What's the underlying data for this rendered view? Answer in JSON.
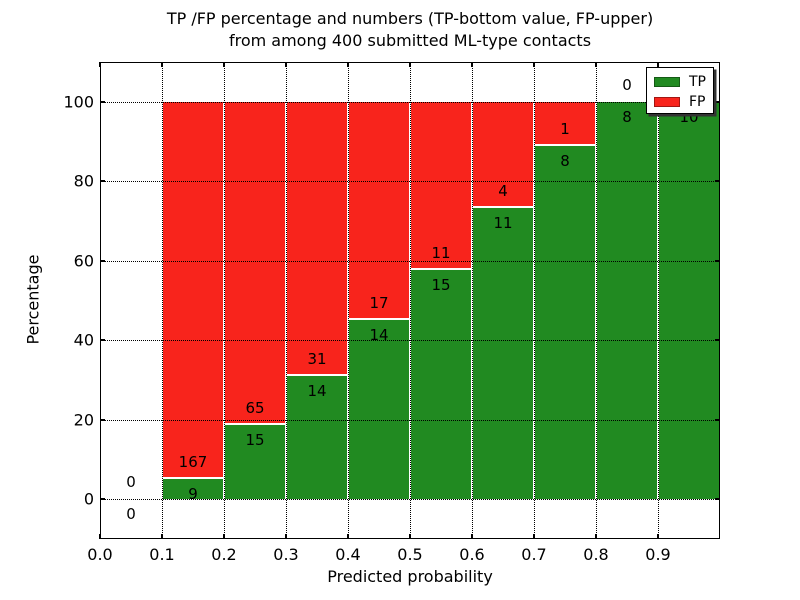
{
  "chart_data": {
    "type": "bar",
    "stacked": true,
    "percent_stacked": true,
    "title_line1": "TP /FP percentage and numbers (TP-bottom value, FP-upper)",
    "title_line2": "from among 400 submitted ML-type contacts",
    "xlabel": "Predicted probability",
    "ylabel": "Percentage",
    "xlim": [
      0.0,
      1.0
    ],
    "ylim": [
      -10,
      110
    ],
    "grid": "dotted",
    "x_ticks": [
      {
        "value": 0.0,
        "label": "0.0"
      },
      {
        "value": 0.1,
        "label": "0.1"
      },
      {
        "value": 0.2,
        "label": "0.2"
      },
      {
        "value": 0.3,
        "label": "0.3"
      },
      {
        "value": 0.4,
        "label": "0.4"
      },
      {
        "value": 0.5,
        "label": "0.5"
      },
      {
        "value": 0.6,
        "label": "0.6"
      },
      {
        "value": 0.7,
        "label": "0.7"
      },
      {
        "value": 0.8,
        "label": "0.8"
      },
      {
        "value": 0.9,
        "label": "0.9"
      }
    ],
    "y_ticks": [
      {
        "value": 0,
        "label": "0"
      },
      {
        "value": 20,
        "label": "20"
      },
      {
        "value": 40,
        "label": "40"
      },
      {
        "value": 60,
        "label": "60"
      },
      {
        "value": 80,
        "label": "80"
      },
      {
        "value": 100,
        "label": "100"
      }
    ],
    "colors": {
      "tp": "#218a21",
      "fp": "#f8241c"
    },
    "legend": {
      "position": "upper right",
      "entries": [
        {
          "label": "TP",
          "color": "#218a21"
        },
        {
          "label": "FP",
          "color": "#f8241c"
        }
      ]
    },
    "bins": [
      {
        "range": [
          0.0,
          0.1
        ],
        "tp": 0,
        "fp": 0,
        "tp_pct": 0
      },
      {
        "range": [
          0.1,
          0.2
        ],
        "tp": 9,
        "fp": 167,
        "tp_pct": 5.11
      },
      {
        "range": [
          0.2,
          0.3
        ],
        "tp": 15,
        "fp": 65,
        "tp_pct": 18.75
      },
      {
        "range": [
          0.3,
          0.4
        ],
        "tp": 14,
        "fp": 31,
        "tp_pct": 31.11
      },
      {
        "range": [
          0.4,
          0.5
        ],
        "tp": 14,
        "fp": 17,
        "tp_pct": 45.16
      },
      {
        "range": [
          0.5,
          0.6
        ],
        "tp": 15,
        "fp": 11,
        "tp_pct": 57.69
      },
      {
        "range": [
          0.6,
          0.7
        ],
        "tp": 11,
        "fp": 4,
        "tp_pct": 73.33
      },
      {
        "range": [
          0.7,
          0.8
        ],
        "tp": 8,
        "fp": 1,
        "tp_pct": 88.89
      },
      {
        "range": [
          0.8,
          0.9
        ],
        "tp": 8,
        "fp": 0,
        "tp_pct": 100
      },
      {
        "range": [
          0.9,
          1.0
        ],
        "tp": 10,
        "fp": 0,
        "tp_pct": 100
      }
    ]
  }
}
